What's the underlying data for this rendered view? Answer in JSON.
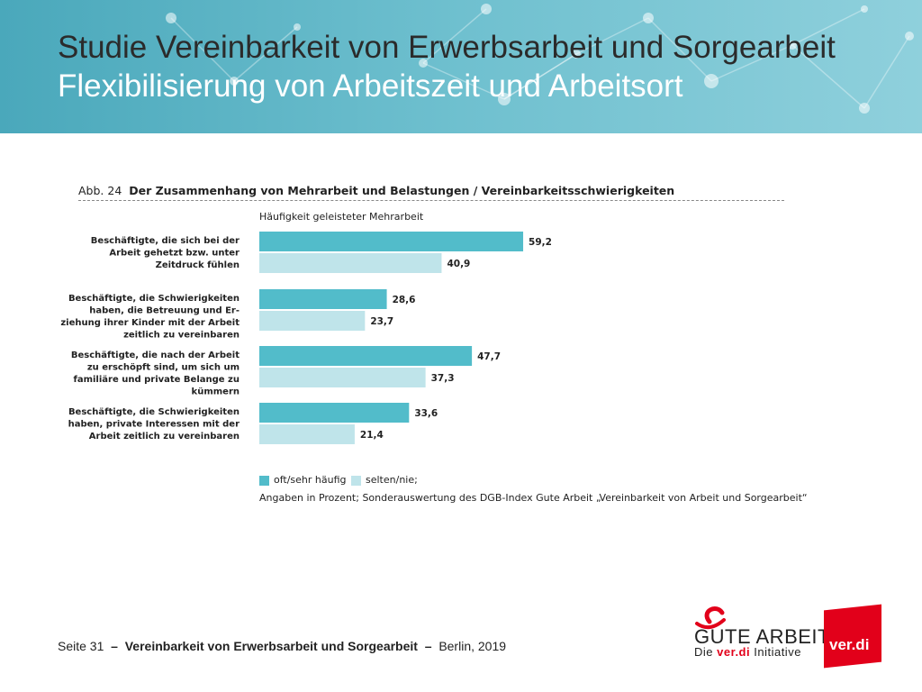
{
  "header": {
    "title": "Studie Vereinbarkeit von Erwerbsarbeit und Sorgearbeit",
    "subtitle": "Flexibilisierung von Arbeitszeit und Arbeitsort"
  },
  "figure": {
    "number": "Abb. 24",
    "title": "Der Zusammenhang von Mehrarbeit und Belastungen / Vereinbarkeitsschwierigkeiten"
  },
  "chart_data": {
    "type": "bar",
    "orientation": "horizontal",
    "title": "Häufigkeit geleisteter Mehrarbeit",
    "categories": [
      [
        "Beschäftigte, die sich bei der",
        "Arbeit gehetzt bzw. unter",
        "Zeitdruck fühlen"
      ],
      [
        "Beschäftigte, die Schwierigkeiten",
        "haben, die Betreuung und Er-",
        "ziehung ihrer Kinder mit der Arbeit",
        "zeitlich zu vereinbaren"
      ],
      [
        "Beschäftigte, die nach der Arbeit",
        "zu erschöpft sind, um sich um",
        "familiäre und private Belange zu",
        "kümmern"
      ],
      [
        "Beschäftigte, die Schwierigkeiten",
        "haben, private Interessen mit der",
        "Arbeit zeitlich zu vereinbaren"
      ]
    ],
    "series": [
      {
        "name": "oft/sehr häufig",
        "values": [
          59.2,
          28.6,
          47.7,
          33.6
        ],
        "labels": [
          "59,2",
          "28,6",
          "47,7",
          "33,6"
        ],
        "color": "#52bcca"
      },
      {
        "name": "selten/nie;",
        "values": [
          40.9,
          23.7,
          37.3,
          21.4
        ],
        "labels": [
          "40,9",
          "23,7",
          "37,3",
          "21,4"
        ],
        "color": "#bfe4ea"
      }
    ],
    "xlim": [
      0,
      100
    ],
    "grid": false,
    "legend": "bottom-left"
  },
  "legend": {
    "oft": "oft/sehr häufig",
    "selten": "selten/nie;"
  },
  "source_note": "Angaben in Prozent; Sonderauswertung des DGB-Index Gute Arbeit „Vereinbarkeit von Arbeit und Sorgearbeit“",
  "footer": {
    "page": "Seite 31",
    "dash": "–",
    "title": "Vereinbarkeit von Erwerbsarbeit und Sorgearbeit",
    "place_year": "Berlin, 2019"
  },
  "logos": {
    "gute_arbeit": "GUTE ARBEIT",
    "die": "Die",
    "verdi_inline": "ver.di",
    "initiative": "Initiative",
    "verdi": "ver.di"
  },
  "colors": {
    "header_bg": "#5db3c4",
    "accent_red": "#e2001a"
  }
}
